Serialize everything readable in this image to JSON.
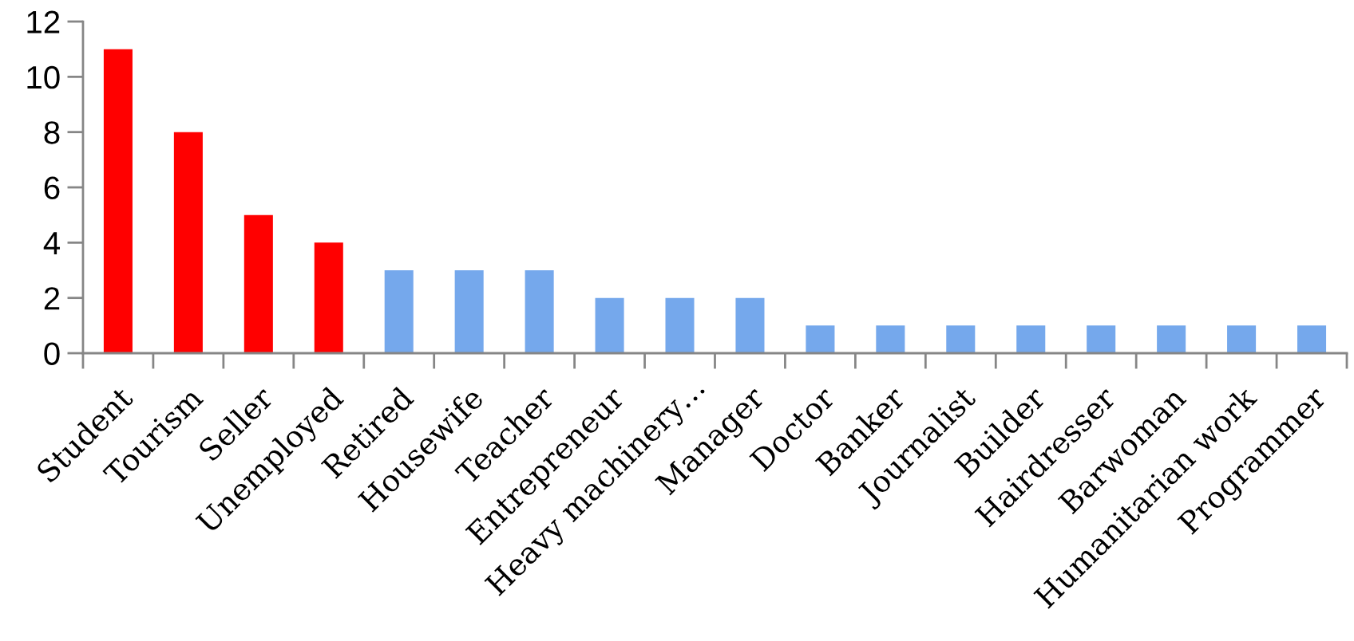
{
  "chart_data": {
    "type": "bar",
    "categories": [
      "Student",
      "Tourism",
      "Seller",
      "Unemployed",
      "Retired",
      "Housewife",
      "Teacher",
      "Entrepreneur",
      "Heavy machinery…",
      "Manager",
      "Doctor",
      "Banker",
      "Journalist",
      "Builder",
      "Hairdresser",
      "Barwoman",
      "Humanitarian work",
      "Programmer"
    ],
    "values": [
      11,
      8,
      5,
      4,
      3,
      3,
      3,
      2,
      2,
      2,
      1,
      1,
      1,
      1,
      1,
      1,
      1,
      1
    ],
    "colors": [
      "#ff0000",
      "#ff0000",
      "#ff0000",
      "#ff0000",
      "#75a8ec",
      "#75a8ec",
      "#75a8ec",
      "#75a8ec",
      "#75a8ec",
      "#75a8ec",
      "#75a8ec",
      "#75a8ec",
      "#75a8ec",
      "#75a8ec",
      "#75a8ec",
      "#75a8ec",
      "#75a8ec",
      "#75a8ec"
    ],
    "ylim": [
      0,
      12
    ],
    "yticks": [
      0,
      2,
      4,
      6,
      8,
      10,
      12
    ],
    "grid": false,
    "legend": false
  }
}
